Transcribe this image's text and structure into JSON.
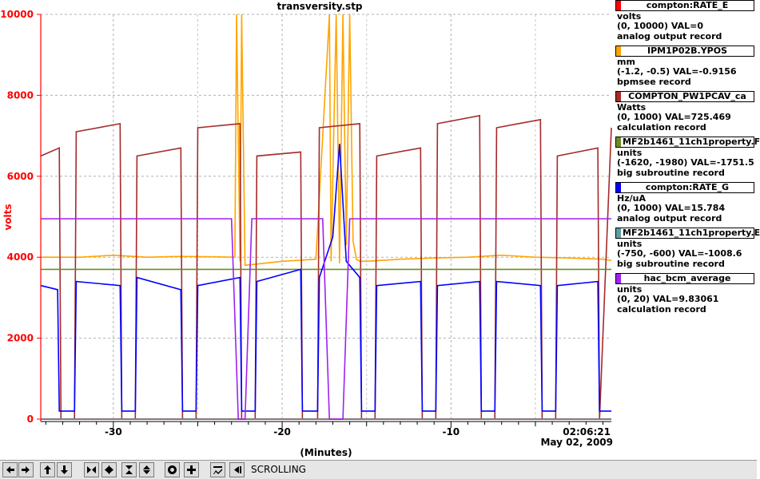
{
  "title": "transversity.stp",
  "chart_data": {
    "type": "line",
    "title": "transversity.stp",
    "xlabel": "(Minutes)",
    "ylabel": "volts",
    "xlim": [
      -34.3,
      -0.5
    ],
    "ylim": [
      0,
      10000
    ],
    "x_ticks": [
      -30,
      -20,
      -10
    ],
    "x_tick_labels": [
      "-30",
      "-20",
      "-10"
    ],
    "y_ticks": [
      0,
      2000,
      4000,
      6000,
      8000,
      10000
    ],
    "y_tick_labels": [
      "0",
      "2000",
      "4000",
      "6000",
      "8000",
      "10000"
    ],
    "time_label": "02:06:21",
    "date_label": "May 02, 2009",
    "grid": true,
    "legend": "right",
    "series": [
      {
        "name": "compton:RATE_E",
        "color": "#ff0000",
        "x": [
          -34.3,
          -0.5
        ],
        "y": [
          0,
          0
        ]
      },
      {
        "name": "IPM1P02B.YPOS",
        "color": "#ffa500",
        "x": [
          -34.3,
          -32,
          -30,
          -28,
          -26,
          -24,
          -22.8,
          -22.7,
          -22.5,
          -22.4,
          -22.2,
          -20,
          -18,
          -17.2,
          -17.1,
          -16.8,
          -16.6,
          -16.4,
          -16.2,
          -16.0,
          -15.8,
          -15.6,
          -15.4,
          -15,
          -13,
          -11,
          -9,
          -7,
          -5,
          -3,
          -1,
          -0.5
        ],
        "y": [
          4000,
          4000,
          4050,
          4000,
          4020,
          4010,
          4000,
          10000,
          3900,
          10000,
          3800,
          3900,
          3950,
          10000,
          3900,
          10000,
          3850,
          10000,
          4300,
          10000,
          4400,
          3950,
          3900,
          3900,
          3950,
          3980,
          4000,
          4050,
          4000,
          3980,
          3950,
          3920
        ]
      },
      {
        "name": "COMPTON_PW1PCAV_ca",
        "color": "#a52a2a",
        "x": [
          -34.3,
          -33.2,
          -33.1,
          -32.3,
          -32.2,
          -29.6,
          -29.5,
          -28.7,
          -28.6,
          -26.0,
          -25.9,
          -25.1,
          -25.0,
          -22.5,
          -22.4,
          -21.6,
          -21.5,
          -18.9,
          -18.8,
          -17.9,
          -17.8,
          -15.4,
          -15.3,
          -14.5,
          -14.4,
          -11.8,
          -11.7,
          -10.9,
          -10.8,
          -8.3,
          -8.2,
          -7.4,
          -7.3,
          -4.7,
          -4.6,
          -3.8,
          -3.7,
          -1.3,
          -1.2,
          -0.5
        ],
        "y": [
          6500,
          6700,
          0,
          0,
          7100,
          7300,
          0,
          0,
          6500,
          6700,
          0,
          0,
          7200,
          7300,
          0,
          0,
          6500,
          6600,
          0,
          0,
          7200,
          7300,
          0,
          0,
          6500,
          6700,
          0,
          0,
          7300,
          7500,
          0,
          0,
          7200,
          7400,
          0,
          0,
          6500,
          6700,
          0,
          7200
        ]
      },
      {
        "name": "MF2b1461_11ch1property.F",
        "color": "#6b8e23",
        "x": [
          -34.3,
          -0.5
        ],
        "y": [
          3700,
          3700
        ]
      },
      {
        "name": "compton:RATE_G",
        "color": "#0000ff",
        "x": [
          -34.3,
          -33.3,
          -33.2,
          -32.3,
          -32.2,
          -29.6,
          -29.5,
          -28.7,
          -28.6,
          -26.0,
          -25.9,
          -25.1,
          -25.0,
          -22.5,
          -22.4,
          -21.6,
          -21.5,
          -18.9,
          -18.8,
          -17.9,
          -17.8,
          -17.0,
          -16.6,
          -16.2,
          -15.4,
          -15.3,
          -14.5,
          -14.4,
          -11.8,
          -11.7,
          -10.9,
          -10.8,
          -8.3,
          -8.2,
          -7.4,
          -7.3,
          -4.7,
          -4.6,
          -3.8,
          -3.7,
          -1.3,
          -1.2,
          -0.5
        ],
        "y": [
          3300,
          3200,
          200,
          200,
          3400,
          3300,
          200,
          200,
          3500,
          3200,
          200,
          200,
          3300,
          3500,
          200,
          200,
          3400,
          3700,
          200,
          200,
          3500,
          4500,
          6800,
          3900,
          3500,
          200,
          200,
          3300,
          3400,
          200,
          200,
          3300,
          3400,
          200,
          200,
          3400,
          3300,
          200,
          200,
          3300,
          3400,
          200,
          200
        ]
      },
      {
        "name": "MF2b1461_11ch1property.E",
        "color": "#5f9ea0",
        "x": [
          -34.3,
          -0.5
        ],
        "y": [
          0,
          0
        ]
      },
      {
        "name": "hac_bcm_average",
        "color": "#a020f0",
        "x": [
          -34.3,
          -23,
          -22.6,
          -22.2,
          -21.8,
          -17.6,
          -17.2,
          -16.9,
          -16.4,
          -16.0,
          -10,
          -5,
          -0.5
        ],
        "y": [
          4950,
          4950,
          0,
          0,
          4950,
          4950,
          0,
          0,
          0,
          4950,
          4950,
          4950,
          4950
        ]
      }
    ]
  },
  "legend_entries": [
    {
      "name": "compton:RATE_E",
      "color": "#ff0000",
      "unit": "volts",
      "range_value": "(0, 10000)  VAL=0",
      "record": "analog output record"
    },
    {
      "name": "IPM1P02B.YPOS",
      "color": "#ffa500",
      "unit": "mm",
      "range_value": "(-1.2, -0.5)  VAL=-0.9156",
      "record": "bpmsee record"
    },
    {
      "name": "COMPTON_PW1PCAV_ca",
      "color": "#a52a2a",
      "unit": "Watts",
      "range_value": "(0, 1000) VAL=725.469",
      "record": "calculation record"
    },
    {
      "name": "MF2b1461_11ch1property.F",
      "color": "#6b8e23",
      "unit": "units",
      "range_value": "(-1620, -1980)  VAL=-1751.5",
      "record": "big subroutine record"
    },
    {
      "name": "compton:RATE_G",
      "color": "#0000ff",
      "unit": "Hz/uA",
      "range_value": "(0, 1000) VAL=15.784",
      "record": "analog output record"
    },
    {
      "name": "MF2b1461_11ch1property.E",
      "color": "#5f9ea0",
      "unit": "units",
      "range_value": "(-750, -600) VAL=-1008.6",
      "record": "big subroutine record"
    },
    {
      "name": "hac_bcm_average",
      "color": "#a020f0",
      "unit": "units",
      "range_value": "(0, 20) VAL=9.83061",
      "record": "calculation record"
    }
  ],
  "toolbar": {
    "buttons": [
      {
        "icon": "arrow-left-icon"
      },
      {
        "icon": "arrow-right-icon"
      },
      {
        "icon": "arrow-up-icon"
      },
      {
        "icon": "arrow-down-icon"
      },
      {
        "icon": "zoom-in-horizontal-icon"
      },
      {
        "icon": "zoom-out-horizontal-icon"
      },
      {
        "icon": "zoom-in-vertical-icon"
      },
      {
        "icon": "zoom-out-vertical-icon"
      },
      {
        "icon": "auto-scale-icon"
      },
      {
        "icon": "add-icon"
      },
      {
        "icon": "config-icon"
      },
      {
        "icon": "go-end-icon"
      }
    ],
    "status": "SCROLLING"
  }
}
